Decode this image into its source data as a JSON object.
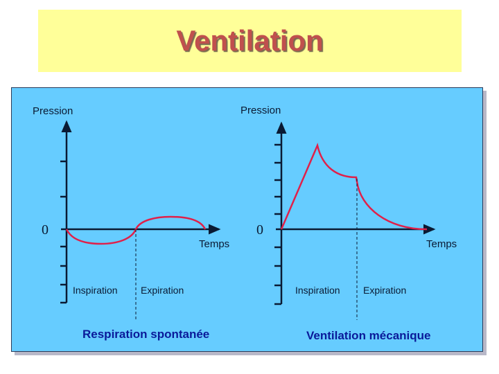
{
  "title": "Ventilation",
  "colors": {
    "title": "#C0504D",
    "title_bg": "#FFFF99",
    "panel_bg": "#66CCFF",
    "curve": "#E0204A",
    "caption": "#0A1A99"
  },
  "left_diagram": {
    "y_label": "Pression",
    "x_label": "Temps",
    "zero_label": "0",
    "phase_1": "Inspiration",
    "phase_2": "Expiration",
    "caption": "Respiration spontanée"
  },
  "right_diagram": {
    "y_label": "Pression",
    "x_label": "Temps",
    "zero_label": "0",
    "phase_1": "Inspiration",
    "phase_2": "Expiration",
    "caption": "Ventilation mécanique"
  }
}
